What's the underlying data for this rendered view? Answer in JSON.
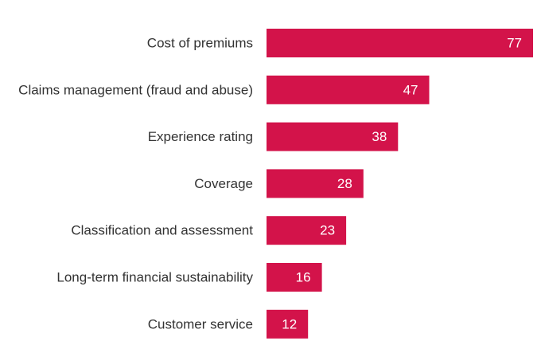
{
  "chart_data": {
    "type": "bar",
    "orientation": "horizontal",
    "categories": [
      "Cost of premiums",
      "Claims management (fraud and abuse)",
      "Experience rating",
      "Coverage",
      "Classification and assessment",
      "Long-term financial sustainability",
      "Customer service"
    ],
    "values": [
      77,
      47,
      38,
      28,
      23,
      16,
      12
    ],
    "bar_color": "#d3134a",
    "value_label_color": "#ffffff",
    "category_label_color": "#333333",
    "xlim": [
      0,
      77
    ],
    "grid": false,
    "legend": "none"
  }
}
